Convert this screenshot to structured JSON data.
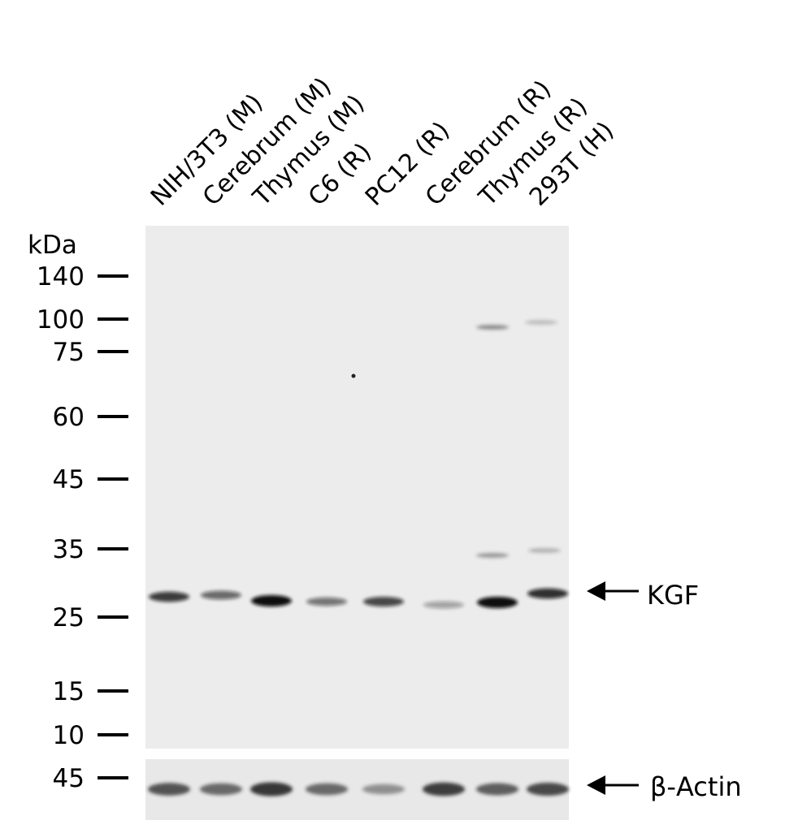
{
  "lanes": [
    "NIH/3T3 (M)",
    "Cerebrum (M)",
    "Thymus (M)",
    "C6 (R)",
    "PC12 (R)",
    "Cerebrum (R)",
    "Thymus (R)",
    "293T (H)"
  ],
  "unit_label": "kDa",
  "markers": [
    "140",
    "100",
    "75",
    "60",
    "45",
    "35",
    "25",
    "15",
    "10"
  ],
  "actin_marker": "45",
  "targets": {
    "main": "KGF",
    "loading": "β-Actin"
  },
  "band_intensity": {
    "KGF": [
      0.8,
      0.6,
      1.0,
      0.55,
      0.75,
      0.35,
      1.0,
      0.85
    ],
    "beta_actin": [
      0.75,
      0.65,
      0.9,
      0.65,
      0.45,
      0.85,
      0.7,
      0.8
    ]
  },
  "colors": {
    "background": "#ffffff",
    "blot": "#ececec",
    "band": "#111111"
  }
}
